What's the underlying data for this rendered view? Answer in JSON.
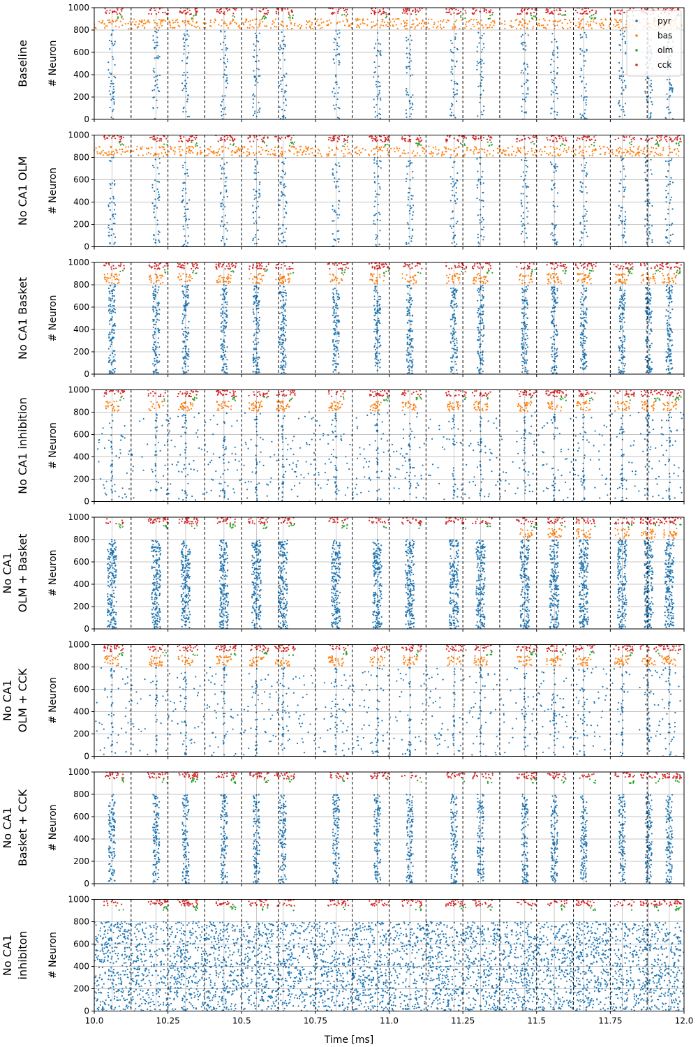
{
  "chart_data": {
    "type": "scatter",
    "xlabel": "Time [ms]",
    "ylabel": "# Neuron",
    "xlim": [
      10.0,
      12.0
    ],
    "ylim": [
      0,
      1000
    ],
    "xticks": [
      "10.0",
      "10.25",
      "10.5",
      "10.75",
      "11.0",
      "11.25",
      "11.5",
      "11.75",
      "12.0"
    ],
    "xtick_values": [
      10.0,
      10.25,
      10.5,
      10.75,
      11.0,
      11.25,
      11.5,
      11.75,
      12.0
    ],
    "yticks": [
      "0",
      "200",
      "400",
      "600",
      "800",
      "1000"
    ],
    "ytick_values": [
      0,
      200,
      400,
      600,
      800,
      1000
    ],
    "grid": "horizontal",
    "dashed_vlines": [
      10.125,
      10.25,
      10.375,
      10.5,
      10.625,
      10.75,
      10.875,
      11.0,
      11.125,
      11.25,
      11.375,
      11.5,
      11.625,
      11.75,
      11.875
    ],
    "solid_vlines": [
      10.06,
      10.21,
      10.31,
      10.44,
      10.55,
      10.64,
      10.82,
      10.96,
      11.07,
      11.22,
      11.31,
      11.46,
      11.56,
      11.66,
      11.79,
      11.88,
      11.95
    ],
    "legend": {
      "placement": "top-right",
      "entries": [
        {
          "name": "pyr",
          "color": "#1f77b4"
        },
        {
          "name": "bas",
          "color": "#ff7f0e"
        },
        {
          "name": "olm",
          "color": "#2ca02c"
        },
        {
          "name": "cck",
          "color": "#d62728"
        }
      ]
    },
    "populations": {
      "pyr": {
        "neurons": [
          0,
          800
        ],
        "color": "#1f77b4"
      },
      "bas": {
        "neurons": [
          800,
          900
        ],
        "color": "#ff7f0e"
      },
      "olm": {
        "neurons": [
          900,
          940
        ],
        "color": "#2ca02c"
      },
      "cck": {
        "neurons": [
          940,
          1000
        ],
        "color": "#d62728"
      }
    },
    "panels": [
      {
        "label": [
          "Baseline"
        ],
        "pyr": "sparse",
        "bas": "dense",
        "olm": true
      },
      {
        "label": [
          "No CA1 OLM"
        ],
        "pyr": "sparse",
        "bas": "dense",
        "olm": true
      },
      {
        "label": [
          "No CA1 Basket"
        ],
        "pyr": "bursts",
        "bas": "bursts",
        "olm": true
      },
      {
        "label": [
          "No CA1 inhibition"
        ],
        "pyr": "scattered",
        "bas": "bursts",
        "olm": true
      },
      {
        "label": [
          "No CA1",
          "OLM + Basket"
        ],
        "pyr": "wide_bursts",
        "bas": "late",
        "bas_start": 11.42,
        "olm": true
      },
      {
        "label": [
          "No CA1",
          "OLM + CCK"
        ],
        "pyr": "scattered",
        "bas": "bursts",
        "olm": true
      },
      {
        "label": [
          "No CA1",
          "Basket + CCK"
        ],
        "pyr": "bursts",
        "bas": "none",
        "olm": true
      },
      {
        "label": [
          "No CA1",
          "inhibiton"
        ],
        "pyr": "continuous",
        "bas": "none",
        "olm": true
      }
    ]
  }
}
